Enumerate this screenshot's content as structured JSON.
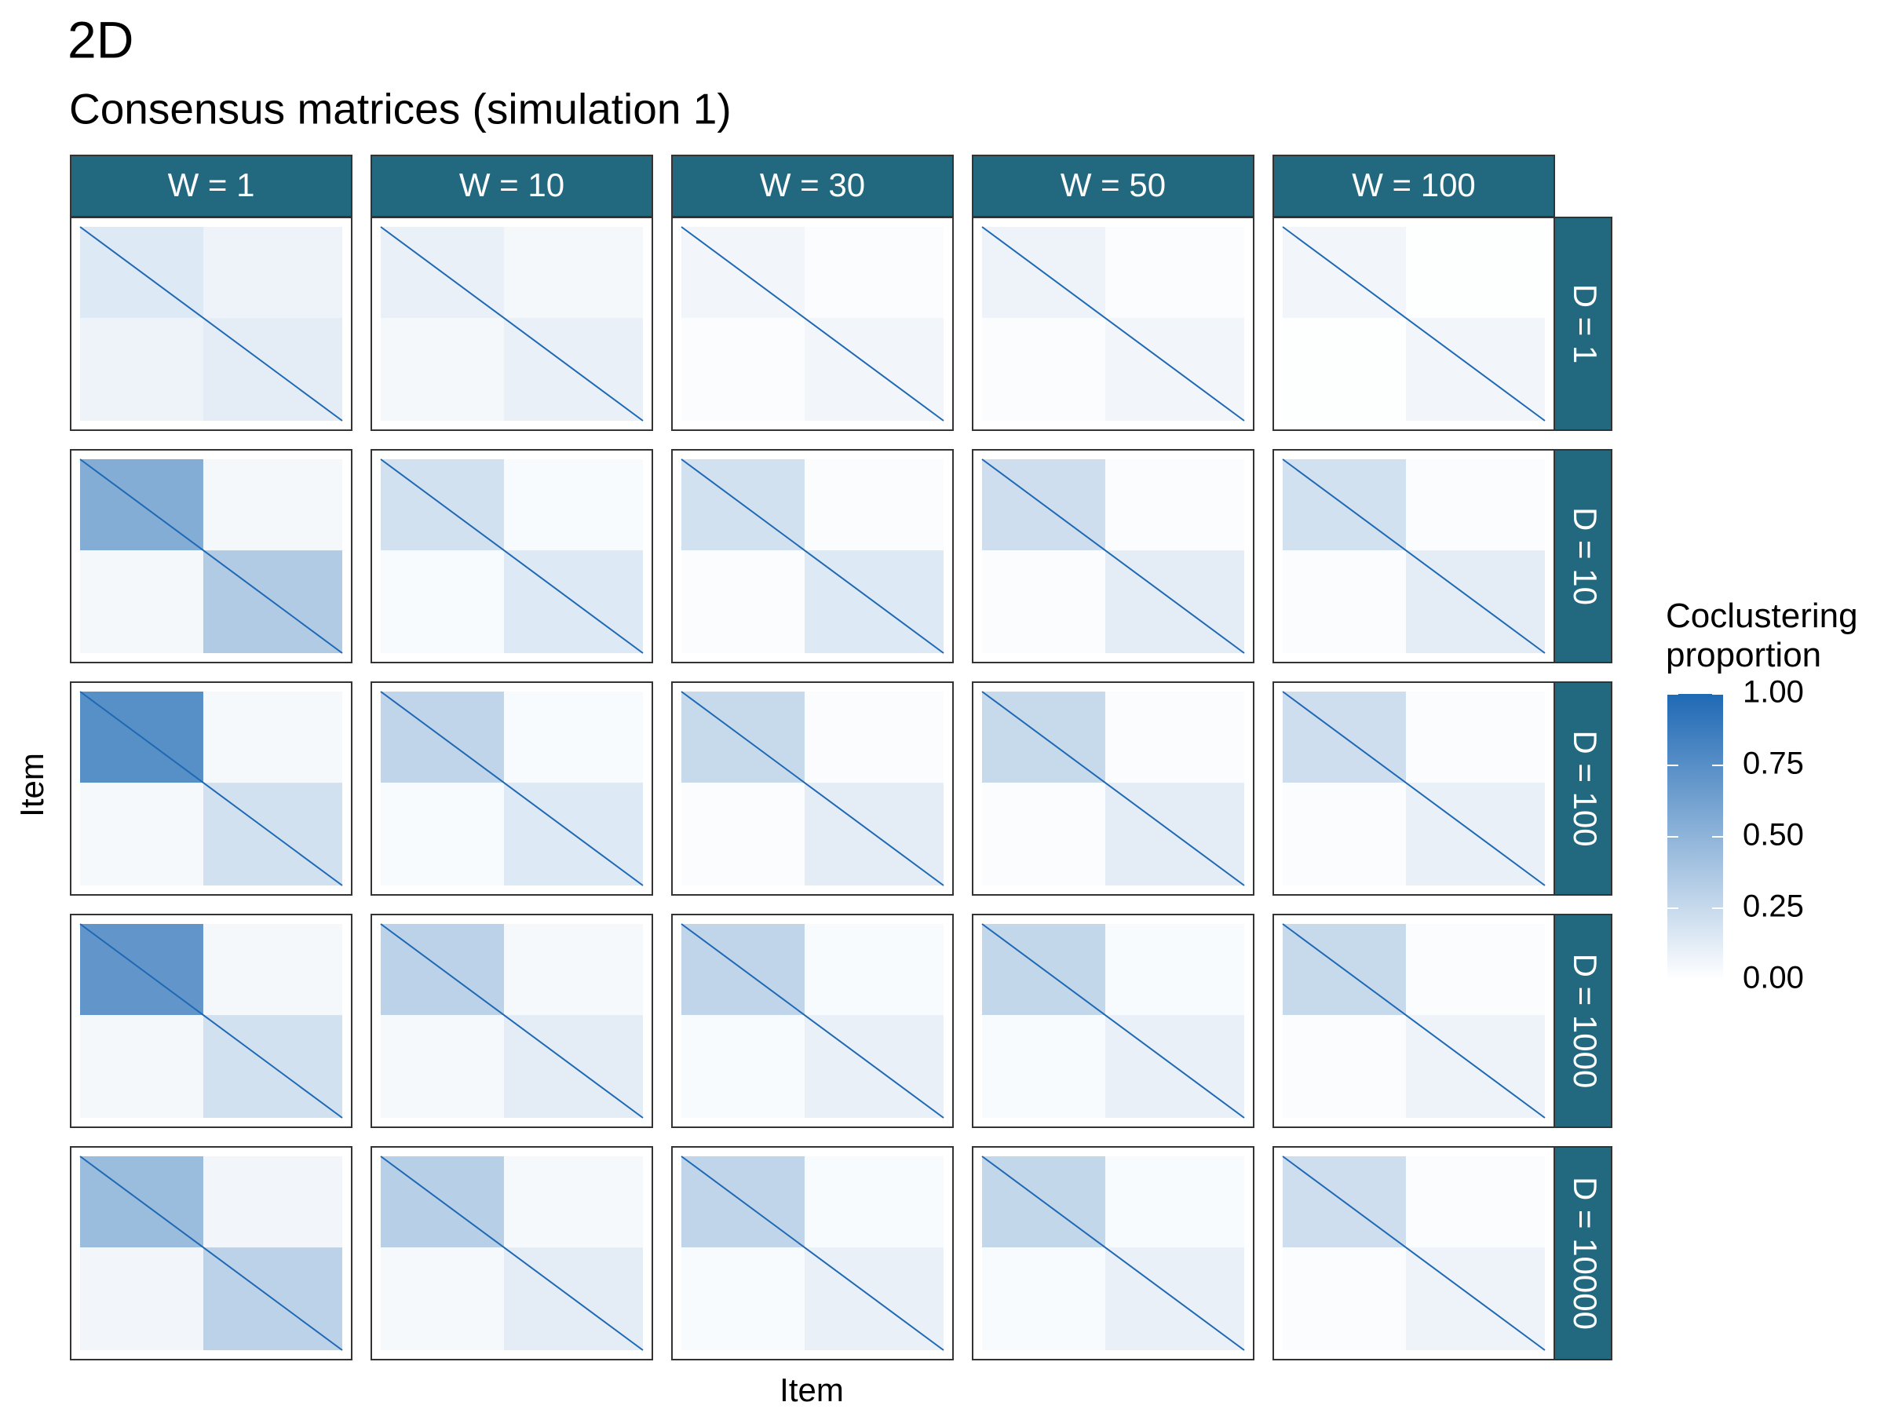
{
  "chart_data": {
    "type": "heatmap",
    "title": "2D",
    "subtitle": "Consensus matrices (simulation 1)",
    "x_label": "Item",
    "y_label": "Item",
    "facet_cols": [
      "W = 1",
      "W = 10",
      "W = 30",
      "W = 50",
      "W = 100"
    ],
    "facet_rows": [
      "D = 1",
      "D = 10",
      "D = 100",
      "D = 1000",
      "D = 10000"
    ],
    "values": [
      [
        [
          [
            0.15,
            0.08
          ],
          [
            0.08,
            0.12
          ]
        ],
        [
          [
            0.1,
            0.05
          ],
          [
            0.05,
            0.1
          ]
        ],
        [
          [
            0.06,
            0.02
          ],
          [
            0.02,
            0.06
          ]
        ],
        [
          [
            0.08,
            0.02
          ],
          [
            0.02,
            0.06
          ]
        ],
        [
          [
            0.06,
            0.01
          ],
          [
            0.01,
            0.06
          ]
        ]
      ],
      [
        [
          [
            0.55,
            0.05
          ],
          [
            0.05,
            0.35
          ]
        ],
        [
          [
            0.2,
            0.03
          ],
          [
            0.03,
            0.15
          ]
        ],
        [
          [
            0.2,
            0.02
          ],
          [
            0.02,
            0.15
          ]
        ],
        [
          [
            0.22,
            0.02
          ],
          [
            0.02,
            0.12
          ]
        ],
        [
          [
            0.2,
            0.02
          ],
          [
            0.02,
            0.12
          ]
        ]
      ],
      [
        [
          [
            0.75,
            0.04
          ],
          [
            0.04,
            0.2
          ]
        ],
        [
          [
            0.28,
            0.03
          ],
          [
            0.03,
            0.15
          ]
        ],
        [
          [
            0.25,
            0.02
          ],
          [
            0.02,
            0.12
          ]
        ],
        [
          [
            0.25,
            0.02
          ],
          [
            0.02,
            0.12
          ]
        ],
        [
          [
            0.22,
            0.02
          ],
          [
            0.02,
            0.1
          ]
        ]
      ],
      [
        [
          [
            0.7,
            0.05
          ],
          [
            0.05,
            0.2
          ]
        ],
        [
          [
            0.3,
            0.04
          ],
          [
            0.04,
            0.12
          ]
        ],
        [
          [
            0.28,
            0.03
          ],
          [
            0.03,
            0.1
          ]
        ],
        [
          [
            0.27,
            0.03
          ],
          [
            0.03,
            0.1
          ]
        ],
        [
          [
            0.25,
            0.02
          ],
          [
            0.02,
            0.08
          ]
        ]
      ],
      [
        [
          [
            0.45,
            0.06
          ],
          [
            0.06,
            0.3
          ]
        ],
        [
          [
            0.32,
            0.04
          ],
          [
            0.04,
            0.12
          ]
        ],
        [
          [
            0.28,
            0.03
          ],
          [
            0.03,
            0.1
          ]
        ],
        [
          [
            0.27,
            0.03
          ],
          [
            0.03,
            0.1
          ]
        ],
        [
          [
            0.22,
            0.02
          ],
          [
            0.02,
            0.08
          ]
        ]
      ]
    ],
    "diagonal": 1,
    "colors": [
      "#ffffff",
      "#1f69b4"
    ],
    "legend_title": "Coclustering proportion",
    "clim": [
      0,
      1
    ],
    "cticks": [
      {
        "value": 0,
        "label": "0.00"
      },
      {
        "value": 0.25,
        "label": "0.25"
      },
      {
        "value": 0.5,
        "label": "0.50"
      },
      {
        "value": 0.75,
        "label": "0.75"
      },
      {
        "value": 1,
        "label": "1.00"
      }
    ],
    "strip_color": "#22687f"
  }
}
